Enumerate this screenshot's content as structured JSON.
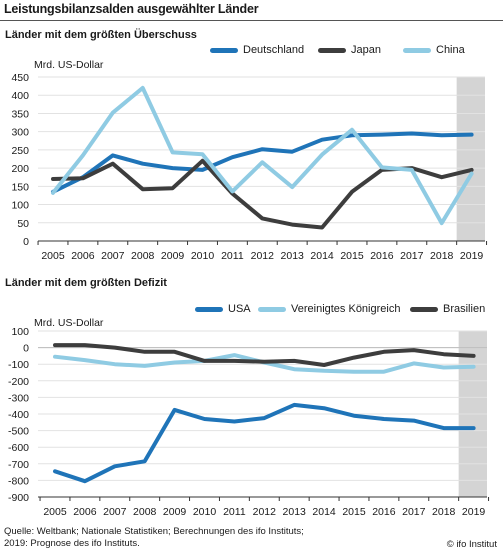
{
  "title": "Leistungsbilanzsalden ausgewählter Länder",
  "source_lines": [
    "Quelle: Weltbank; Nationale Statistiken; Berechnungen des ifo Instituts;",
    "2019: Prognose des ifo Instituts."
  ],
  "copyright": "© ifo Institut",
  "colors": {
    "dark_blue": "#1f74b8",
    "gray": "#3d3d3d",
    "light_blue": "#8fcbe3",
    "forecast_shade": "#d4d4d4"
  },
  "chart_data": [
    {
      "type": "line",
      "title": "Länder mit dem größten Überschuss",
      "ylabel": "Mrd. US-Dollar",
      "ylim": [
        0,
        450
      ],
      "yticks": [
        0,
        50,
        100,
        150,
        200,
        250,
        300,
        350,
        400,
        450
      ],
      "x": [
        "2005",
        "2006",
        "2007",
        "2008",
        "2009",
        "2010",
        "2011",
        "2012",
        "2013",
        "2014",
        "2015",
        "2016",
        "2017",
        "2018",
        "2019"
      ],
      "forecast_from": "2019",
      "legend_position": "top",
      "series": [
        {
          "name": "Deutschland",
          "color": "#1f74b8",
          "values": [
            135,
            175,
            235,
            212,
            200,
            195,
            230,
            252,
            245,
            278,
            290,
            292,
            295,
            290,
            292
          ]
        },
        {
          "name": "Japan",
          "color": "#3d3d3d",
          "values": [
            170,
            172,
            212,
            142,
            145,
            220,
            130,
            62,
            45,
            37,
            135,
            195,
            200,
            175,
            195
          ]
        },
        {
          "name": "China",
          "color": "#8fcbe3",
          "values": [
            132,
            235,
            352,
            420,
            243,
            238,
            136,
            216,
            148,
            237,
            305,
            202,
            195,
            49,
            185
          ]
        }
      ]
    },
    {
      "type": "line",
      "title": "Länder mit dem größten Defizit",
      "ylabel": "Mrd. US-Dollar",
      "ylim": [
        -900,
        100
      ],
      "yticks": [
        -900,
        -800,
        -700,
        -600,
        -500,
        -400,
        -300,
        -200,
        -100,
        0,
        100
      ],
      "x": [
        "2005",
        "2006",
        "2007",
        "2008",
        "2009",
        "2010",
        "2011",
        "2012",
        "2013",
        "2014",
        "2015",
        "2016",
        "2017",
        "2018",
        "2019"
      ],
      "forecast_from": "2019",
      "legend_position": "top",
      "series": [
        {
          "name": "USA",
          "color": "#1f74b8",
          "values": [
            -745,
            -805,
            -715,
            -685,
            -375,
            -430,
            -445,
            -425,
            -345,
            -365,
            -410,
            -430,
            -440,
            -485,
            -485
          ]
        },
        {
          "name": "Vereinigtes Königreich",
          "color": "#8fcbe3",
          "values": [
            -55,
            -75,
            -100,
            -110,
            -90,
            -80,
            -45,
            -90,
            -130,
            -140,
            -145,
            -145,
            -95,
            -120,
            -115
          ]
        },
        {
          "name": "Brasilien",
          "color": "#3d3d3d",
          "values": [
            15,
            15,
            0,
            -25,
            -25,
            -80,
            -80,
            -85,
            -80,
            -105,
            -60,
            -25,
            -15,
            -40,
            -50
          ]
        }
      ]
    }
  ]
}
